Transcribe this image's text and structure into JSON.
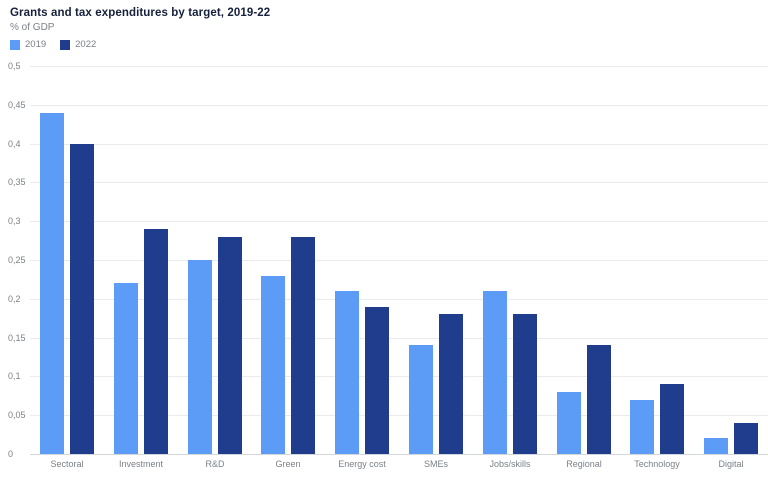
{
  "header": {
    "title": "Grants and tax expenditures by target, 2019-22",
    "subtitle": "% of GDP"
  },
  "colors": {
    "series_2019": "#5c9cf6",
    "series_2022": "#1f3c8d",
    "title_text": "#15203c",
    "muted_text": "#7b8089",
    "gridline": "#ebebee",
    "axis_line": "#d4d6db"
  },
  "chart_data": {
    "type": "bar",
    "title": "Grants and tax expenditures by target, 2019-22",
    "ylabel": "% of GDP",
    "xlabel": "",
    "categories": [
      "Sectoral",
      "Investment",
      "R&D",
      "Green",
      "Energy cost",
      "SMEs",
      "Jobs/skills",
      "Regional",
      "Technology",
      "Digital"
    ],
    "series": [
      {
        "name": "2019",
        "color": "#5c9cf6",
        "values": [
          0.44,
          0.22,
          0.25,
          0.23,
          0.21,
          0.14,
          0.21,
          0.08,
          0.07,
          0.02
        ]
      },
      {
        "name": "2022",
        "color": "#1f3c8d",
        "values": [
          0.4,
          0.29,
          0.28,
          0.28,
          0.19,
          0.18,
          0.18,
          0.14,
          0.09,
          0.04
        ]
      }
    ],
    "ylim": [
      0,
      0.5
    ],
    "ytick_step": 0.05,
    "ytick_labels": [
      "0",
      "0,05",
      "0,1",
      "0,15",
      "0,2",
      "0,25",
      "0,3",
      "0,35",
      "0,4",
      "0,45",
      "0,5"
    ],
    "decimal_separator": ",",
    "grid": true,
    "legend_position": "top-left"
  }
}
